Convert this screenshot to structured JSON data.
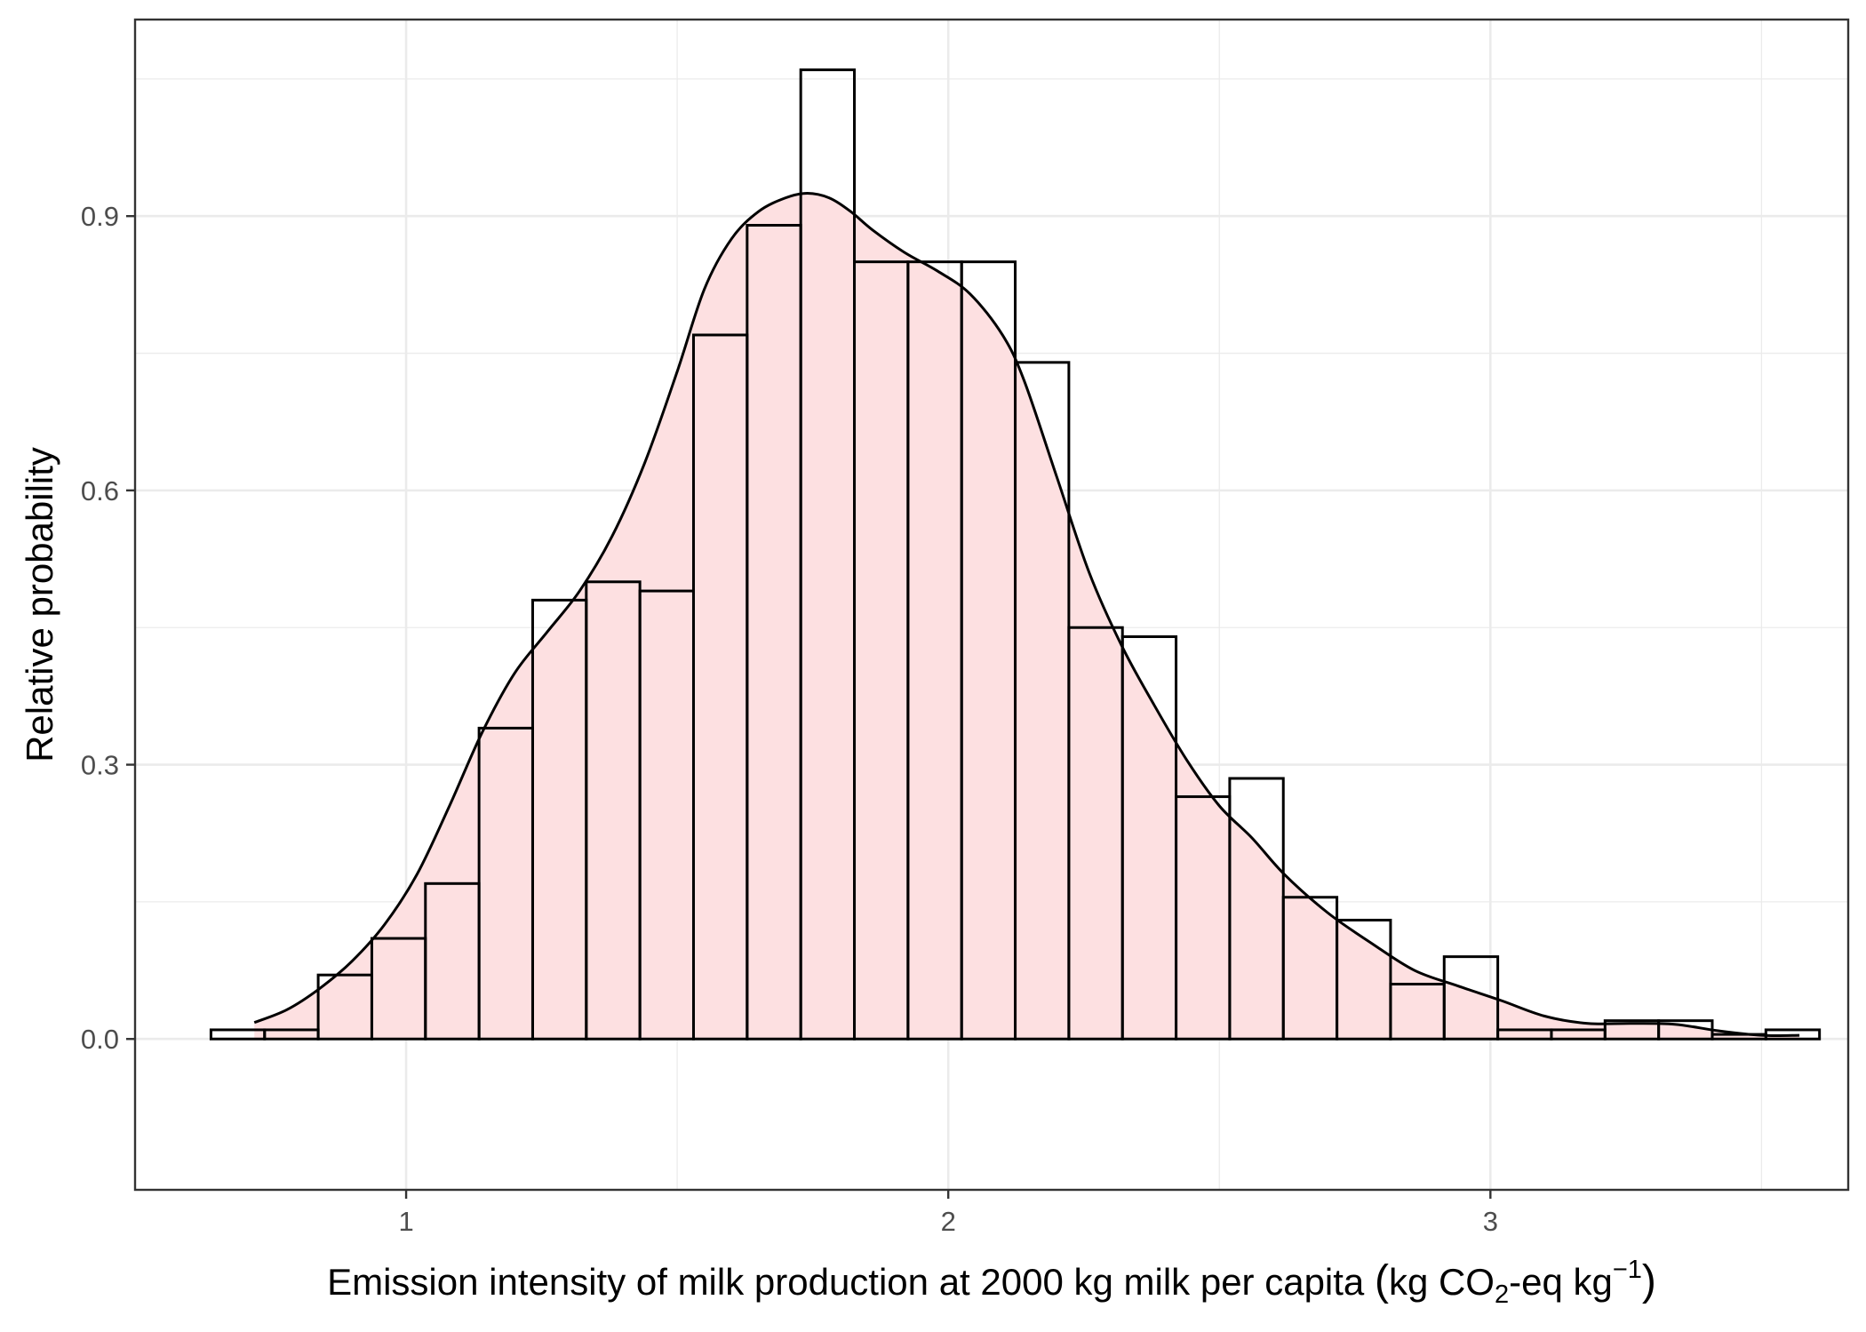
{
  "chart_data": {
    "type": "histogram",
    "xlabel": {
      "prefix": "Emission intensity of milk production at 2000 kg milk per capita ",
      "open_paren": "(",
      "unit_a": "kg CO",
      "sub": "2",
      "unit_b": "-eq kg",
      "sup": "−1",
      "close_paren": ")"
    },
    "ylabel": "Relative probability",
    "xlim": [
      0.5,
      3.66
    ],
    "ylim": [
      -0.165,
      1.115
    ],
    "grid": true,
    "legend": "none",
    "x_ticks": [
      {
        "value": 1,
        "label": "1"
      },
      {
        "value": 2,
        "label": "2"
      },
      {
        "value": 3,
        "label": "3"
      }
    ],
    "x_minor_ticks": [
      0.5,
      1.5,
      2.5,
      3.5
    ],
    "y_ticks": [
      {
        "value": 0.0,
        "label": "0.0"
      },
      {
        "value": 0.3,
        "label": "0.3"
      },
      {
        "value": 0.6,
        "label": "0.6"
      },
      {
        "value": 0.9,
        "label": "0.9"
      }
    ],
    "y_minor_ticks": [
      0.15,
      0.45,
      0.75,
      1.05
    ],
    "bins": {
      "start": 0.64,
      "width": 0.0989,
      "values": [
        0.01,
        0.01,
        0.07,
        0.11,
        0.17,
        0.34,
        0.48,
        0.5,
        0.49,
        0.77,
        0.89,
        1.06,
        0.85,
        0.85,
        0.85,
        0.74,
        0.45,
        0.44,
        0.265,
        0.285,
        0.155,
        0.13,
        0.06,
        0.09,
        0.01,
        0.01,
        0.02,
        0.02,
        0.005,
        0.01
      ]
    },
    "density": {
      "x": [
        0.72,
        0.78,
        0.84,
        0.9,
        0.96,
        1.02,
        1.08,
        1.14,
        1.2,
        1.26,
        1.32,
        1.38,
        1.44,
        1.5,
        1.55,
        1.6,
        1.65,
        1.7,
        1.74,
        1.78,
        1.82,
        1.86,
        1.92,
        1.98,
        2.04,
        2.1,
        2.14,
        2.2,
        2.26,
        2.32,
        2.38,
        2.44,
        2.5,
        2.56,
        2.62,
        2.7,
        2.78,
        2.86,
        2.94,
        3.02,
        3.1,
        3.18,
        3.26,
        3.34,
        3.42,
        3.5,
        3.57
      ],
      "y": [
        0.018,
        0.032,
        0.055,
        0.085,
        0.125,
        0.18,
        0.255,
        0.335,
        0.4,
        0.445,
        0.49,
        0.55,
        0.63,
        0.73,
        0.82,
        0.875,
        0.905,
        0.92,
        0.925,
        0.92,
        0.905,
        0.885,
        0.86,
        0.84,
        0.815,
        0.77,
        0.72,
        0.615,
        0.51,
        0.43,
        0.365,
        0.305,
        0.255,
        0.22,
        0.18,
        0.138,
        0.105,
        0.075,
        0.058,
        0.042,
        0.025,
        0.017,
        0.017,
        0.016,
        0.009,
        0.004,
        0.004
      ]
    },
    "colors": {
      "fill": "#fde0e1",
      "outline": "#000000",
      "grid": "#ebebeb",
      "panel_border": "#333333"
    }
  }
}
